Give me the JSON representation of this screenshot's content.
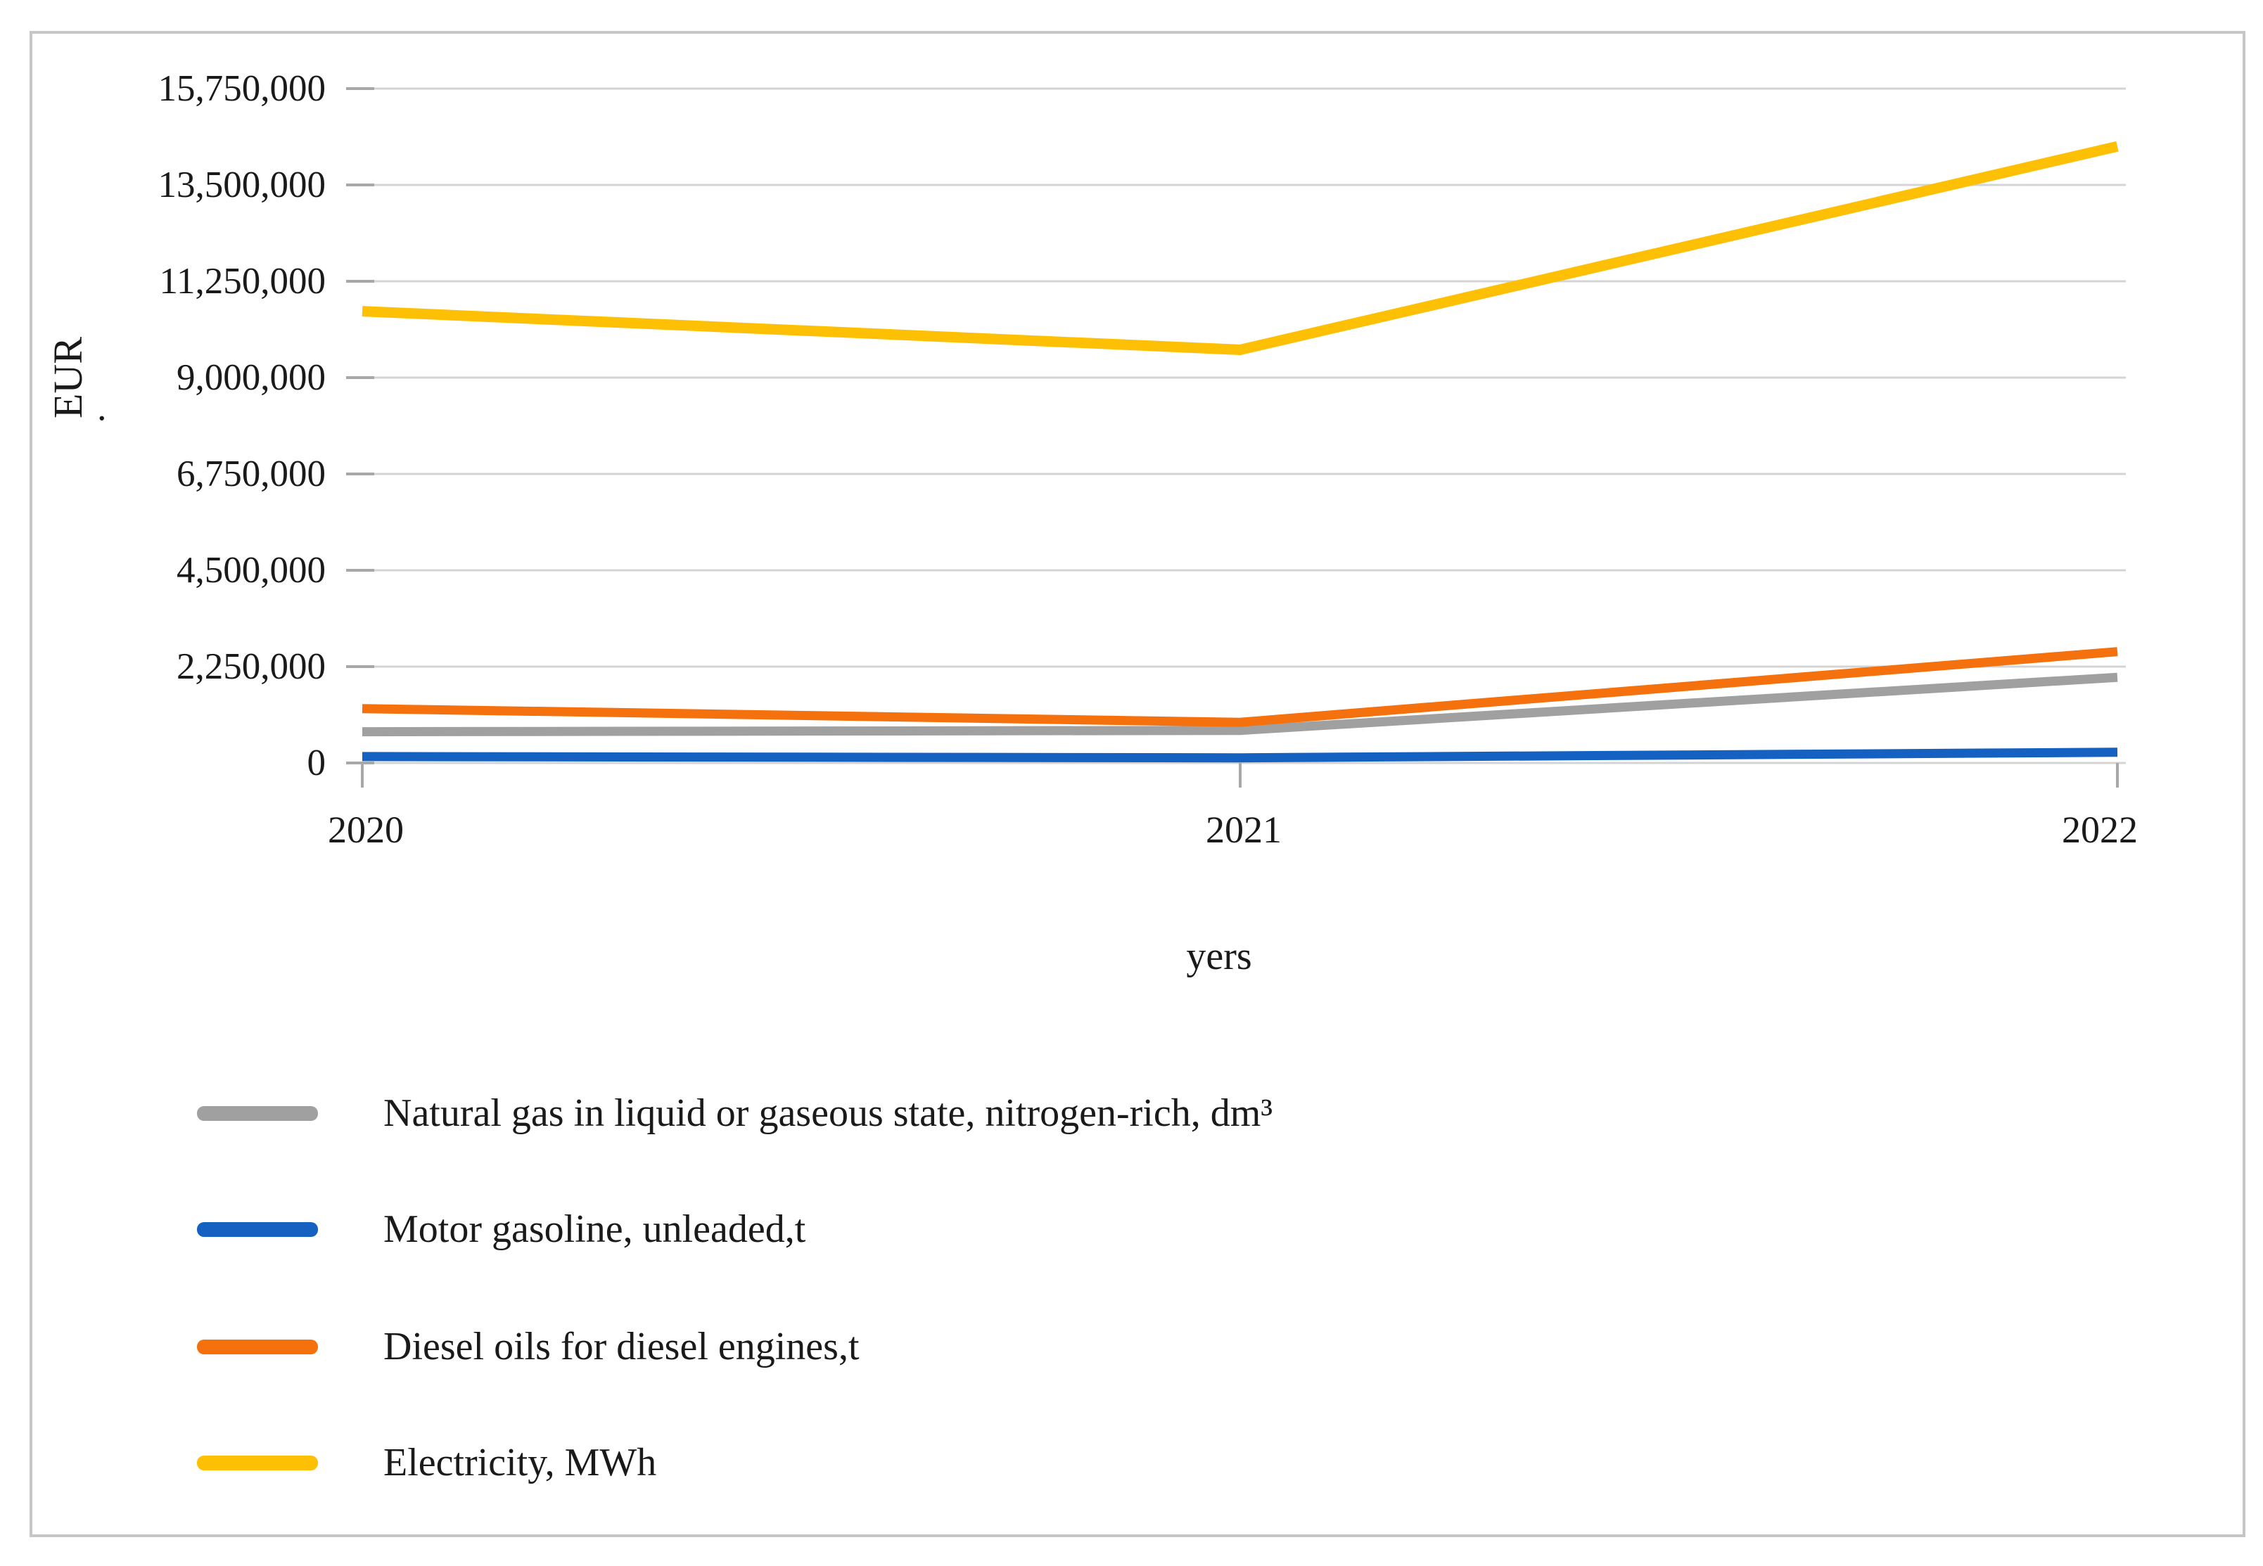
{
  "figure": {
    "background": "#ffffff",
    "frame_border_color": "#c6c6c6",
    "gridline_color": "#d4d4d4",
    "tick_color": "#a8a8a8",
    "text_color": "#1a1a1a"
  },
  "chart_data": {
    "type": "line",
    "title": "",
    "xlabel": "yers",
    "ylabel": "EUR",
    "ylabel_dot": ".",
    "categories": [
      "2020",
      "2021",
      "2022"
    ],
    "series": [
      {
        "name": "Natural gas in liquid or gaseous state, nitrogen-rich, dm³",
        "color": "#a0a0a0",
        "values": [
          730000,
          760000,
          2000000
        ]
      },
      {
        "name": "Motor gasoline, unleaded,t",
        "color": "#1561c2",
        "values": [
          150000,
          120000,
          250000
        ]
      },
      {
        "name": "Diesel oils for diesel engines,t",
        "color": "#f5710d",
        "values": [
          1270000,
          950000,
          2600000
        ]
      },
      {
        "name": "Electricity, MWh",
        "color": "#fec005",
        "values": [
          10550000,
          9650000,
          14400000
        ]
      }
    ],
    "y_ticks": [
      "15,750,000",
      "13,500,000",
      "11,250,000",
      "9,000,000",
      "6,750,000",
      "4,500,000",
      "2,250,000",
      "0"
    ],
    "y_tick_values": [
      15750000,
      13500000,
      11250000,
      9000000,
      6750000,
      4500000,
      2250000,
      0
    ],
    "ylim": [
      0,
      15750000
    ],
    "grid": "horizontal",
    "legend_position": "bottom-left",
    "legend_order": [
      0,
      1,
      2,
      3
    ]
  }
}
